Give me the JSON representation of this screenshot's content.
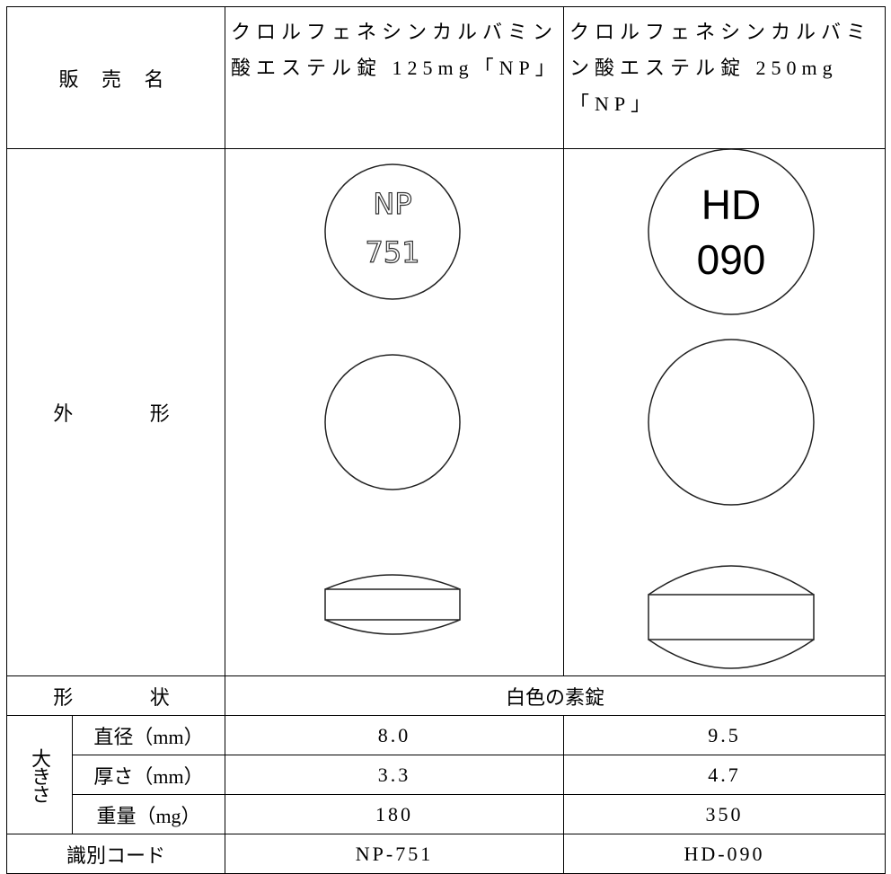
{
  "table": {
    "header": {
      "label": "販 売 名",
      "products": [
        "クロルフェネシンカルバミン酸エステル錠 125mg「NP」",
        "クロルフェネシンカルバミン酸エステル錠 250mg「NP」"
      ]
    },
    "appearance": {
      "label": "外 形",
      "imprints": [
        [
          "NP",
          "751"
        ],
        [
          "HD",
          "090"
        ]
      ]
    },
    "shape": {
      "label": "形 状",
      "value": "白色の素錠"
    },
    "size": {
      "label": "大きさ",
      "rows": [
        {
          "label": "直径（mm）",
          "values": [
            "8.0",
            "9.5"
          ]
        },
        {
          "label": "厚さ（mm）",
          "values": [
            "3.3",
            "4.7"
          ]
        },
        {
          "label": "重量（mg）",
          "values": [
            "180",
            "350"
          ]
        }
      ]
    },
    "code": {
      "label": "識別コード",
      "values": [
        "NP-751",
        "HD-090"
      ]
    }
  }
}
